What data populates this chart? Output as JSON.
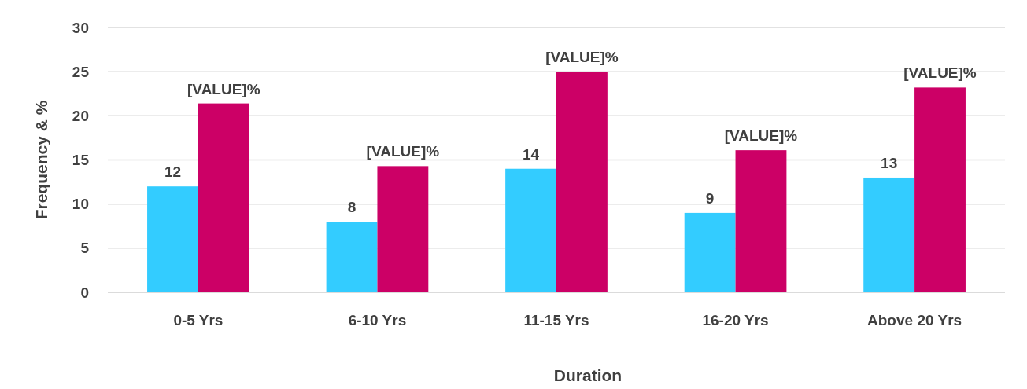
{
  "chart_data": {
    "type": "bar",
    "xlabel": "Duration",
    "ylabel": "Frequency & %",
    "categories": [
      "0-5 Yrs",
      "6-10 Yrs",
      "11-15 Yrs",
      "16-20 Yrs",
      "Above 20 Yrs"
    ],
    "series": [
      {
        "color": "#33ccff",
        "values": [
          12,
          8,
          14,
          9,
          13
        ],
        "value_labels": [
          "12",
          "8",
          "14",
          "9",
          "13"
        ]
      },
      {
        "color": "#cc0066",
        "values": [
          21.4,
          14.3,
          25,
          16.1,
          23.2
        ],
        "value_labels": [
          "[VALUE]%",
          "[VALUE]%",
          "[VALUE]%",
          "[VALUE]%",
          "[VALUE]%"
        ]
      }
    ],
    "ylim": [
      0,
      30
    ],
    "yticks": [
      0,
      5,
      10,
      15,
      20,
      25,
      30
    ],
    "grid": "y"
  }
}
